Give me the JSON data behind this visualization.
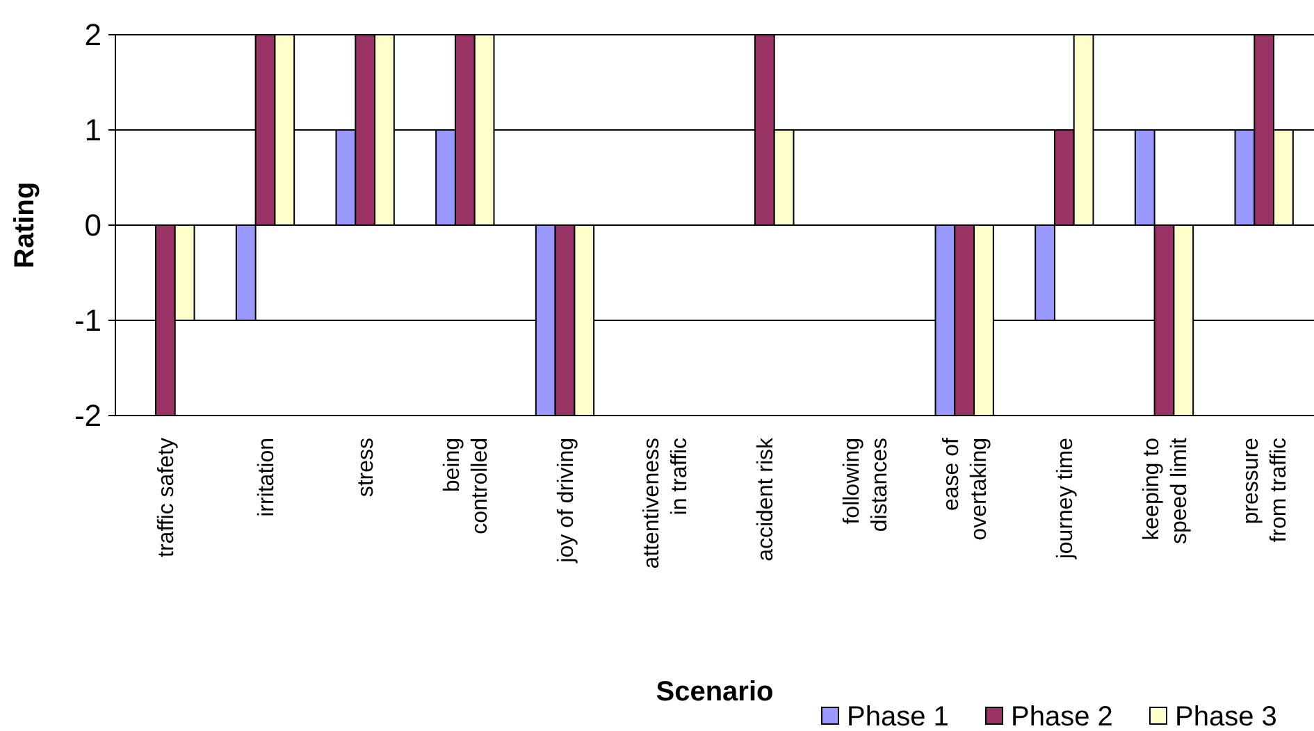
{
  "chart_data": {
    "type": "bar",
    "xlabel": "Scenario",
    "ylabel": "Rating",
    "categories": [
      "traffic safety",
      "irritation",
      "stress",
      "being controlled",
      "joy of driving",
      "attentiveness in traffic",
      "accident risk",
      "following distances",
      "ease of overtaking",
      "journey time",
      "keeping to speed limit",
      "pressure from traffic"
    ],
    "series": [
      {
        "name": "Phase 1",
        "color": "#9999ff",
        "values": [
          0,
          -1,
          1,
          1,
          -2,
          0,
          0,
          0,
          -2,
          -1,
          1,
          1
        ]
      },
      {
        "name": "Phase 2",
        "color": "#993366",
        "values": [
          -2,
          2,
          2,
          2,
          -2,
          0,
          2,
          0,
          -2,
          1,
          -2,
          2
        ]
      },
      {
        "name": "Phase 3",
        "color": "#ffffcc",
        "values": [
          -1,
          2,
          2,
          2,
          -2,
          0,
          1,
          0,
          -2,
          2,
          -2,
          1
        ]
      }
    ],
    "ylim": [
      -2,
      2
    ],
    "yticks": [
      -2,
      -1,
      0,
      1,
      2
    ],
    "grid": "y",
    "legend": "bottom right"
  }
}
